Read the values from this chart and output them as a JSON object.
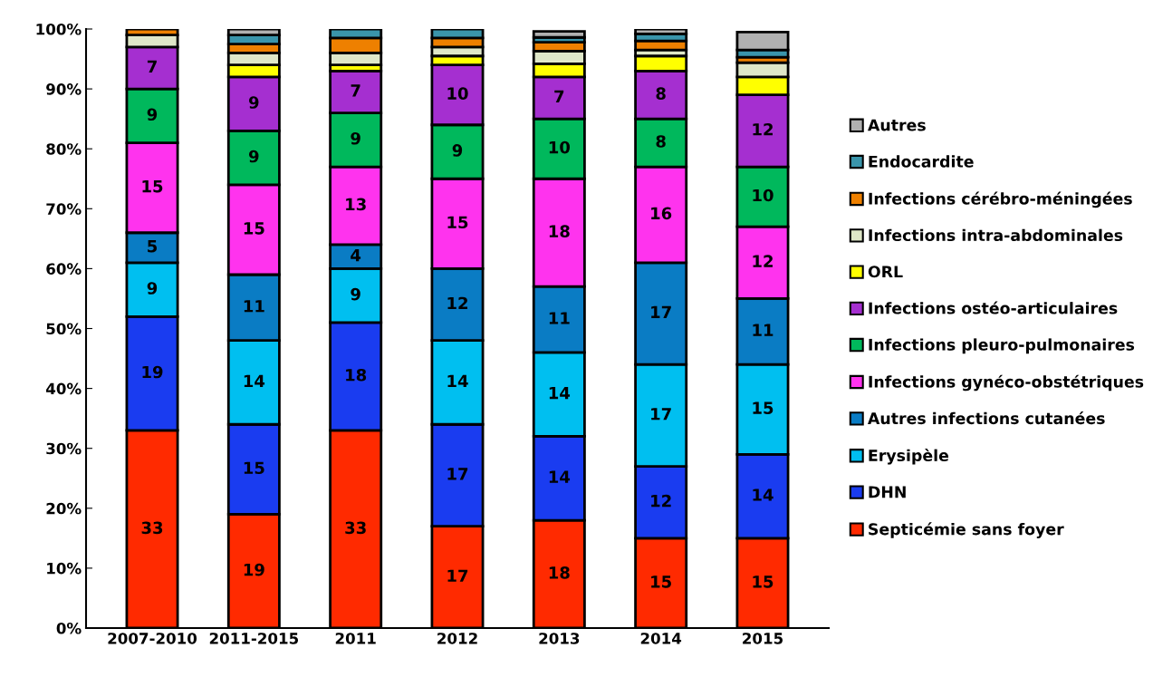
{
  "chart_data": {
    "type": "bar",
    "stacked": true,
    "legend": "right",
    "grid": false,
    "ylim": [
      0,
      100
    ],
    "yticks": [
      {
        "value": 0,
        "label": "0%"
      },
      {
        "value": 10,
        "label": "10%"
      },
      {
        "value": 20,
        "label": "20%"
      },
      {
        "value": 30,
        "label": "30%"
      },
      {
        "value": 40,
        "label": "40%"
      },
      {
        "value": 50,
        "label": "50%"
      },
      {
        "value": 60,
        "label": "60%"
      },
      {
        "value": 70,
        "label": "70%"
      },
      {
        "value": 80,
        "label": "80%"
      },
      {
        "value": 90,
        "label": "90%"
      },
      {
        "value": 100,
        "label": "100%"
      }
    ],
    "categories": [
      "2007-2010",
      "2011-2015",
      "2011",
      "2012",
      "2013",
      "2014",
      "2015"
    ],
    "series": [
      {
        "name": "Septicémie sans foyer",
        "color": "#ff2a00",
        "values": [
          33,
          19,
          33,
          17,
          18,
          15,
          15
        ],
        "value_labels": [
          "33",
          "19",
          "33",
          "17",
          "18",
          "15",
          "15"
        ]
      },
      {
        "name": "DHN",
        "color": "#1a3cf0",
        "values": [
          19,
          15,
          18,
          17,
          14,
          12,
          14
        ],
        "value_labels": [
          "19",
          "15",
          "18",
          "17",
          "14",
          "12",
          "14"
        ]
      },
      {
        "name": "Erysipèle",
        "color": "#00bff0",
        "values": [
          9,
          14,
          9,
          14,
          14,
          17,
          15
        ],
        "value_labels": [
          "9",
          "14",
          "9",
          "14",
          "14",
          "17",
          "15"
        ]
      },
      {
        "name": "Autres infections cutanées",
        "color": "#0a7cc4",
        "values": [
          5,
          11,
          4,
          12,
          11,
          17,
          11
        ],
        "value_labels": [
          "5",
          "11",
          "4",
          "12",
          "11",
          "17",
          "11"
        ]
      },
      {
        "name": "Infections gynéco-obstétriques",
        "color": "#ff33ee",
        "values": [
          15,
          15,
          13,
          15,
          18,
          16,
          12
        ],
        "value_labels": [
          "15",
          "15",
          "13",
          "15",
          "18",
          "16",
          "12"
        ]
      },
      {
        "name": "Infections pleuro-pulmonaires",
        "color": "#00b85c",
        "values": [
          9,
          9,
          9,
          9,
          10,
          8,
          10
        ],
        "value_labels": [
          "9",
          "9",
          "9",
          "9",
          "10",
          "8",
          "10"
        ]
      },
      {
        "name": "Infections ostéo-articulaires",
        "color": "#a52fd0",
        "values": [
          7,
          9,
          7,
          10,
          7,
          8,
          12
        ],
        "value_labels": [
          "7",
          "9",
          "7",
          "10",
          "7",
          "8",
          "12"
        ]
      },
      {
        "name": "ORL",
        "color": "#ffff00",
        "values": [
          null,
          2,
          1,
          1.5,
          2.2,
          2.5,
          3
        ]
      },
      {
        "name": "Infections intra-abdominales",
        "color": "#dfe7c8",
        "values": [
          2,
          2,
          2,
          1.5,
          2.1,
          1,
          2.4
        ]
      },
      {
        "name": "Infections cérébro-méningées",
        "color": "#ee8000",
        "values": [
          1,
          1.5,
          2.5,
          1.5,
          1.5,
          1.5,
          0.9
        ]
      },
      {
        "name": "Endocardite",
        "color": "#3a95ab",
        "values": [
          null,
          1.5,
          1.5,
          1.5,
          0.8,
          1.2,
          1.2
        ]
      },
      {
        "name": "Autres",
        "color": "#b0b0b0",
        "values": [
          null,
          1,
          null,
          null,
          1,
          0.8,
          3
        ]
      }
    ]
  }
}
